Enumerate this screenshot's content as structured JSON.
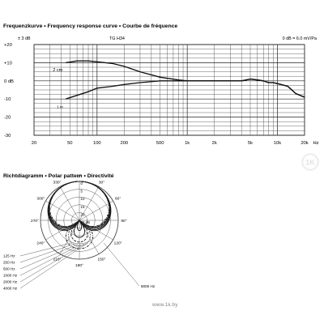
{
  "freq_chart": {
    "title": "Frequenzkurve • Frequency response curve • Courbe de fréquence",
    "tolerance_label": "± 3 dB",
    "model_label": "TG H34",
    "reference_label": "0 dB = 6.0 mV/Pa",
    "x_unit": "Hz",
    "x_tick_labels": [
      {
        "value": 20,
        "label": "20"
      },
      {
        "value": 50,
        "label": "50"
      },
      {
        "value": 100,
        "label": "100"
      },
      {
        "value": 200,
        "label": "200"
      },
      {
        "value": 500,
        "label": "500"
      },
      {
        "value": 1000,
        "label": "1k"
      },
      {
        "value": 2000,
        "label": "2k"
      },
      {
        "value": 5000,
        "label": "5k"
      },
      {
        "value": 10000,
        "label": "10k"
      },
      {
        "value": 20000,
        "label": "20k"
      }
    ],
    "y_tick_labels": [
      {
        "value": 20,
        "label": "+20"
      },
      {
        "value": 10,
        "label": "+10"
      },
      {
        "value": 0,
        "label": "0 dB"
      },
      {
        "value": -10,
        "label": "-10"
      },
      {
        "value": -20,
        "label": "-20"
      },
      {
        "value": -30,
        "label": "-30"
      }
    ]
  },
  "chart_data": [
    {
      "type": "line",
      "x_scale": "log",
      "xlim": [
        20,
        20000
      ],
      "ylim": [
        -30,
        20
      ],
      "xlabel": "Hz",
      "ylabel": "dB",
      "grid": true,
      "series": [
        {
          "name": "2 cm",
          "x": [
            45,
            60,
            80,
            100,
            150,
            200,
            300,
            500,
            800,
            1000,
            2000,
            3000,
            4000,
            5000,
            6000,
            7000,
            8000,
            9000,
            10000,
            13000,
            16000,
            20000
          ],
          "y": [
            10,
            11,
            11,
            10.5,
            9.5,
            8,
            5,
            2,
            0.5,
            0,
            0,
            0,
            0,
            1,
            0.5,
            0,
            -1,
            -1,
            -1.5,
            -3,
            -7,
            -9
          ]
        },
        {
          "name": "1 m",
          "x": [
            45,
            60,
            80,
            100,
            150,
            200,
            300,
            500,
            700,
            1000,
            2000,
            3000,
            4000,
            5000,
            6000,
            7000,
            8000,
            9000,
            10000,
            13000,
            16000,
            20000
          ],
          "y": [
            -10,
            -8,
            -6,
            -4,
            -3,
            -2,
            -1,
            0,
            0,
            0,
            0,
            0,
            0,
            1,
            0.5,
            0,
            -1,
            -1,
            -1.5,
            -3,
            -7,
            -9
          ]
        }
      ]
    },
    {
      "type": "polar",
      "angle_labels": [
        "0°",
        "30°",
        "60°",
        "90°",
        "120°",
        "150°",
        "180°",
        "210°",
        "240°",
        "270°",
        "300°",
        "330°"
      ],
      "radial_ticks_db": [
        0,
        -5,
        -10,
        -15,
        -20,
        -25
      ],
      "radial_labels": [
        "0",
        "5",
        "10",
        "15",
        "20",
        "25 dB"
      ],
      "series": [
        {
          "name": "125 Hz",
          "color": "#1a1a1a",
          "dash": "solid"
        },
        {
          "name": "250 Hz",
          "color": "#1a1a1a",
          "dash": "solid"
        },
        {
          "name": "500 Hz",
          "color": "#1a1a1a",
          "dash": "solid"
        },
        {
          "name": "1000 Hz",
          "color": "#1a1a1a",
          "dash": "solid"
        },
        {
          "name": "2000 Hz",
          "color": "#1a1a1a",
          "dash": "dashed"
        },
        {
          "name": "4000 Hz",
          "color": "#1a1a1a",
          "dash": "dotted"
        },
        {
          "name": "8000 Hz",
          "color": "#1a1a1a",
          "dash": "dashdot"
        }
      ]
    }
  ],
  "polar_chart": {
    "title": "Richtdiagramm • Polar pattern • Directivité"
  },
  "watermark": {
    "text": "www.1k.by",
    "logo_text": "1K"
  }
}
